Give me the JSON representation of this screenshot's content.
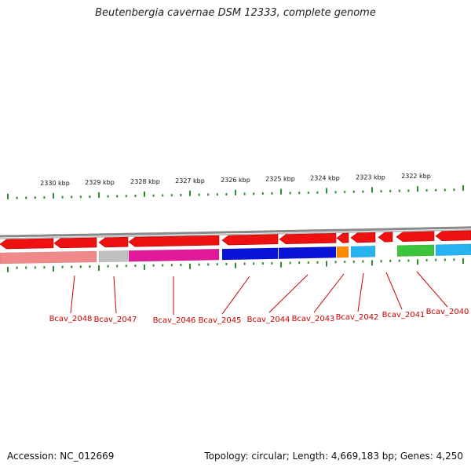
{
  "title": "Beutenbergia cavernae DSM 12333, complete genome",
  "footer": {
    "accession": "Accession: NC_012669",
    "summary": "Topology: circular; Length: 4,669,183 bp; Genes: 4,250"
  },
  "scale_labels": [
    "2330 kbp",
    "2329 kbp",
    "2328 kbp",
    "2327 kbp",
    "2326 kbp",
    "2325 kbp",
    "2324 kbp",
    "2323 kbp",
    "2322 kbp"
  ],
  "gene_labels": [
    "Bcav_2048",
    "Bcav_2047",
    "Bcav_2046",
    "Bcav_2045",
    "Bcav_2044",
    "Bcav_2043",
    "Bcav_2042",
    "Bcav_2041",
    "Bcav_2040"
  ],
  "colors": {
    "backbone": "#8a8a8a",
    "strand_arrows": "#ee1111",
    "ticks": "#2e8b2e",
    "labels": "#cc0000",
    "gene_fills": [
      "#f08a8a",
      "#c0c0c0",
      "#e0189a",
      "#0a14d8",
      "#0a14d8",
      "#ff8c00",
      "#25b4f0",
      "#3cc43c",
      "#25b4f0"
    ]
  }
}
